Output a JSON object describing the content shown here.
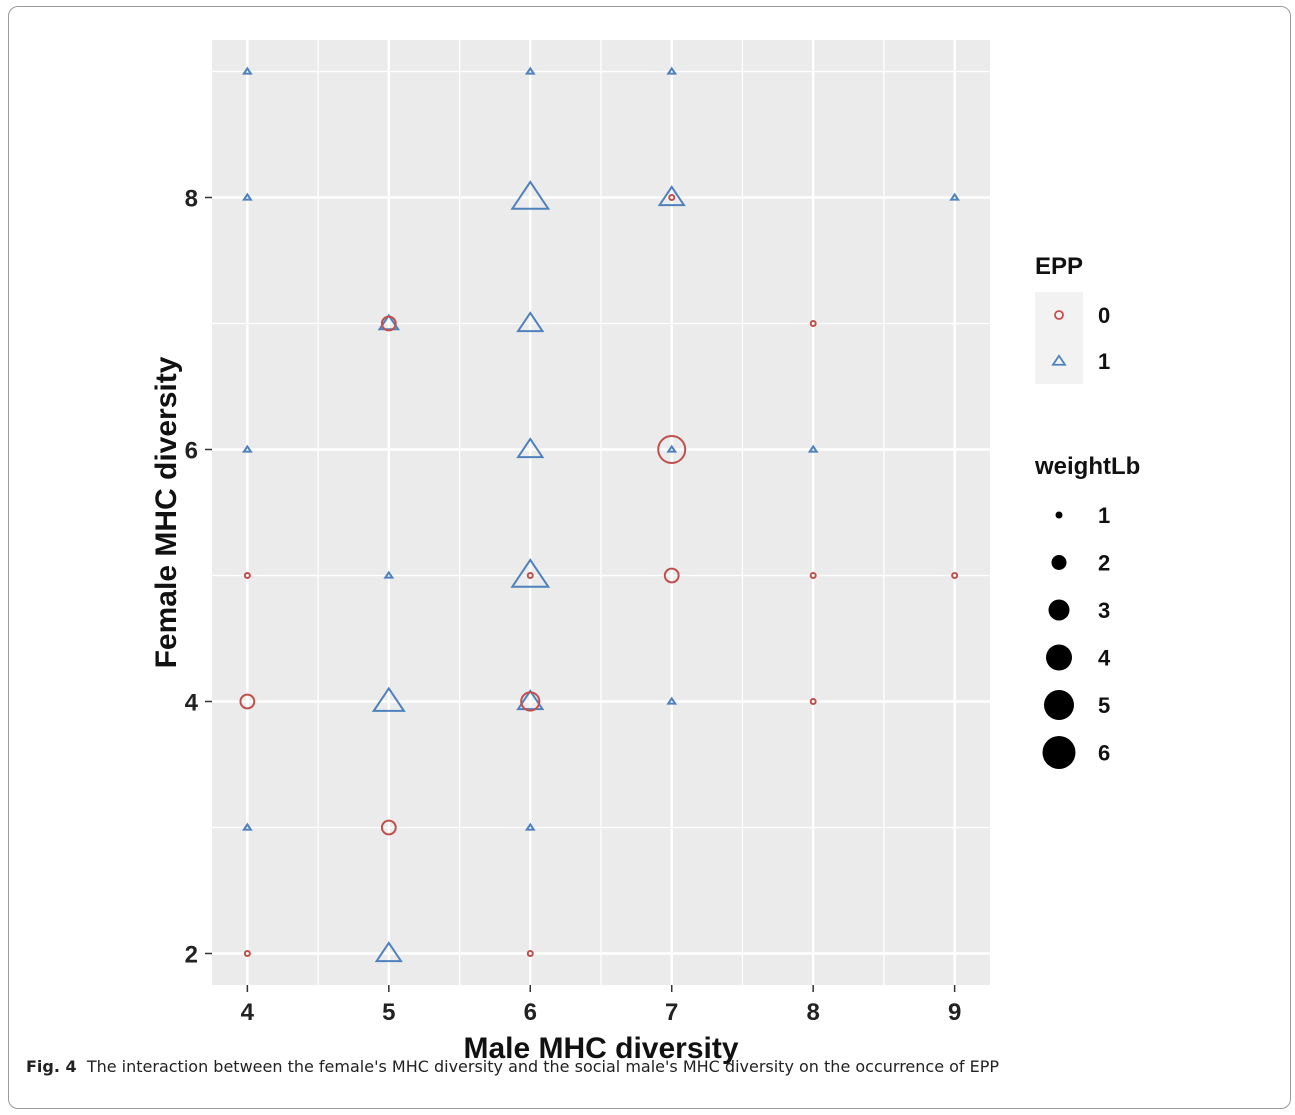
{
  "caption": {
    "label": "Fig. 4",
    "text": "The interaction between the female's MHC diversity and the social male's MHC diversity on the occurrence of EPP"
  },
  "chart_data": {
    "type": "scatter",
    "xlabel": "Male MHC diversity",
    "ylabel": "Female MHC diversity",
    "xlim": [
      3.75,
      9.25
    ],
    "ylim": [
      1.75,
      9.25
    ],
    "x_ticks": [
      4,
      5,
      6,
      7,
      8,
      9
    ],
    "y_ticks": [
      2,
      4,
      6,
      8
    ],
    "grid": true,
    "colors": {
      "epp_0": "#c0504d",
      "epp_1": "#4f81bd",
      "panel_bg": "#ebebeb",
      "legend_bg": "#f2f2f2"
    },
    "legend": {
      "placement": "right",
      "color_title": "EPP",
      "color_entries": [
        {
          "label": "0",
          "shape": "circle"
        },
        {
          "label": "1",
          "shape": "triangle"
        }
      ],
      "size_title": "weightLb",
      "size_entries": [
        "1",
        "2",
        "3",
        "4",
        "5",
        "6"
      ]
    },
    "series": [
      {
        "name": "0",
        "shape": "circle",
        "points": [
          {
            "x": 4,
            "y": 2,
            "w": 1
          },
          {
            "x": 4,
            "y": 4,
            "w": 3
          },
          {
            "x": 4,
            "y": 5,
            "w": 1
          },
          {
            "x": 5,
            "y": 3,
            "w": 3
          },
          {
            "x": 5,
            "y": 7,
            "w": 3
          },
          {
            "x": 6,
            "y": 2,
            "w": 1
          },
          {
            "x": 6,
            "y": 4,
            "w": 4
          },
          {
            "x": 6,
            "y": 5,
            "w": 1
          },
          {
            "x": 7,
            "y": 5,
            "w": 3
          },
          {
            "x": 7,
            "y": 6,
            "w": 6
          },
          {
            "x": 7,
            "y": 8,
            "w": 1
          },
          {
            "x": 8,
            "y": 4,
            "w": 1
          },
          {
            "x": 8,
            "y": 5,
            "w": 1
          },
          {
            "x": 8,
            "y": 7,
            "w": 1
          },
          {
            "x": 9,
            "y": 5,
            "w": 1
          }
        ]
      },
      {
        "name": "1",
        "shape": "triangle",
        "points": [
          {
            "x": 4,
            "y": 3,
            "w": 1
          },
          {
            "x": 4,
            "y": 6,
            "w": 1
          },
          {
            "x": 4,
            "y": 8,
            "w": 1
          },
          {
            "x": 4,
            "y": 9,
            "w": 1
          },
          {
            "x": 5,
            "y": 2,
            "w": 4
          },
          {
            "x": 5,
            "y": 4,
            "w": 5
          },
          {
            "x": 5,
            "y": 5,
            "w": 1
          },
          {
            "x": 5,
            "y": 7,
            "w": 3
          },
          {
            "x": 6,
            "y": 3,
            "w": 1
          },
          {
            "x": 6,
            "y": 4,
            "w": 4
          },
          {
            "x": 6,
            "y": 5,
            "w": 6
          },
          {
            "x": 6,
            "y": 6,
            "w": 4
          },
          {
            "x": 6,
            "y": 7,
            "w": 4
          },
          {
            "x": 6,
            "y": 8,
            "w": 6
          },
          {
            "x": 6,
            "y": 9,
            "w": 1
          },
          {
            "x": 7,
            "y": 4,
            "w": 1
          },
          {
            "x": 7,
            "y": 6,
            "w": 1
          },
          {
            "x": 7,
            "y": 8,
            "w": 4
          },
          {
            "x": 7,
            "y": 9,
            "w": 1
          },
          {
            "x": 8,
            "y": 6,
            "w": 1
          },
          {
            "x": 9,
            "y": 8,
            "w": 1
          }
        ]
      }
    ]
  }
}
